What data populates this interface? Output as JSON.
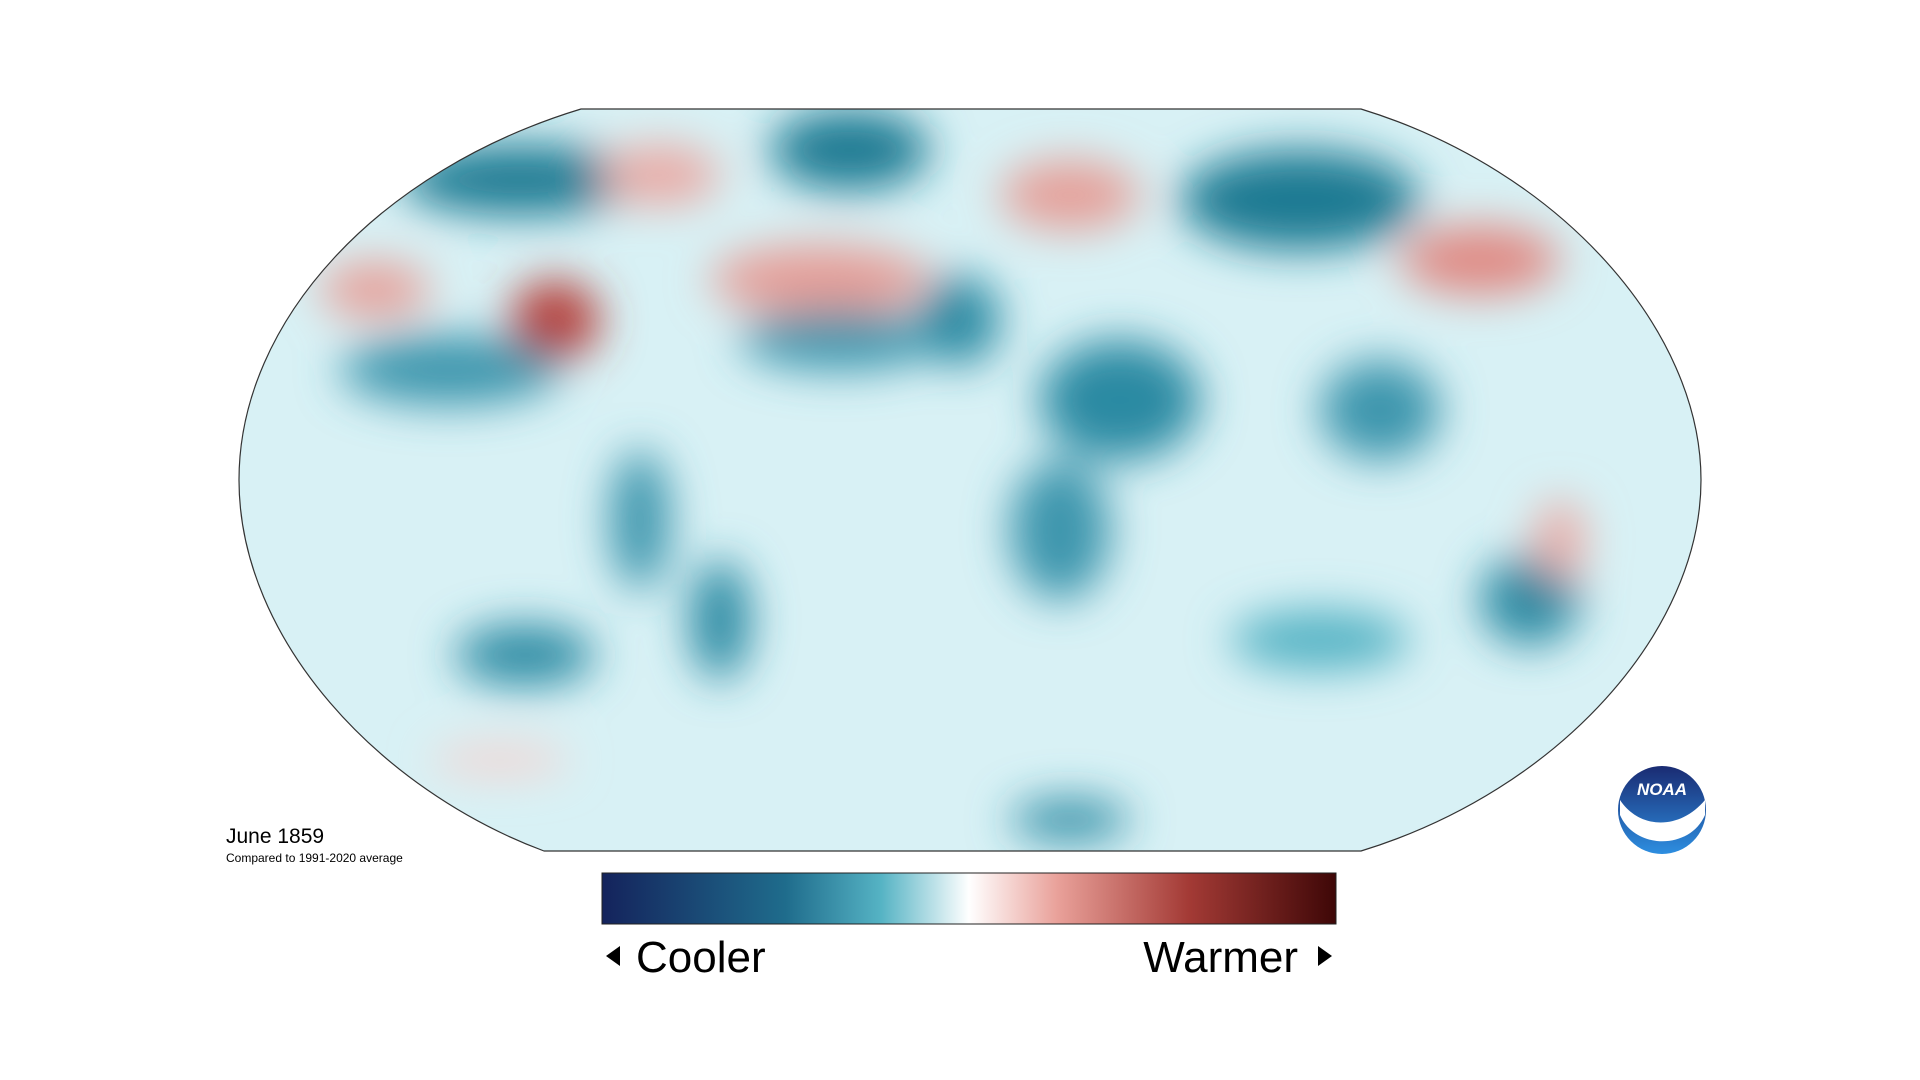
{
  "map": {
    "title": "June 1859",
    "subtitle": "Compared to 1991-2020 average"
  },
  "legend": {
    "low_label": "Cooler",
    "high_label": "Warmer"
  },
  "logo": {
    "text": "NOAA"
  }
}
